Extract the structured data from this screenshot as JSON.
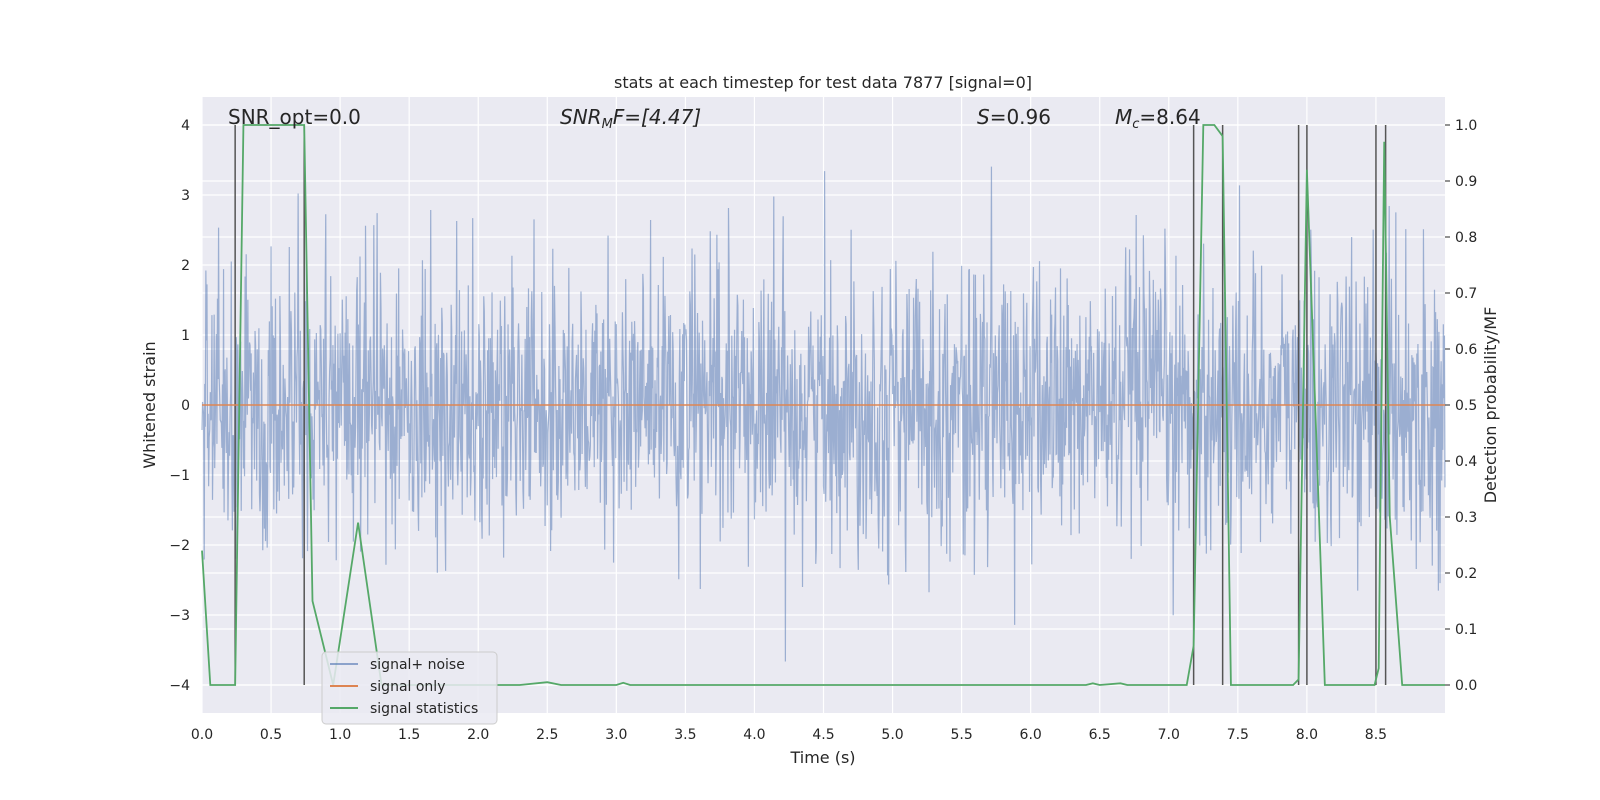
{
  "chart_data": {
    "type": "line",
    "title": "stats at each timestep for test data 7877 [signal=0]",
    "xlabel": "Time (s)",
    "ylabel_left": "Whitened strain",
    "ylabel_right": "Detection probability/MF",
    "xlim": [
      0.0,
      9.0
    ],
    "ylim_left": [
      -4.4,
      4.4
    ],
    "ylim_right": [
      -0.05,
      1.05
    ],
    "xticks": [
      0.0,
      0.5,
      1.0,
      1.5,
      2.0,
      2.5,
      3.0,
      3.5,
      4.0,
      4.5,
      5.0,
      5.5,
      6.0,
      6.5,
      7.0,
      7.5,
      8.0,
      8.5
    ],
    "xtick_labels": [
      "0.0",
      "0.5",
      "1.0",
      "1.5",
      "2.0",
      "2.5",
      "3.0",
      "3.5",
      "4.0",
      "4.5",
      "5.0",
      "5.5",
      "6.0",
      "6.5",
      "7.0",
      "7.5",
      "8.0",
      "8.5"
    ],
    "yticks_left": [
      -4,
      -3,
      -2,
      -1,
      0,
      1,
      2,
      3,
      4
    ],
    "ytick_labels_left": [
      "−4",
      "−3",
      "−2",
      "−1",
      "0",
      "1",
      "2",
      "3",
      "4"
    ],
    "yticks_right": [
      0.0,
      0.1,
      0.2,
      0.3,
      0.4,
      0.5,
      0.6,
      0.7,
      0.8,
      0.9,
      1.0
    ],
    "ytick_labels_right": [
      "0.0",
      "0.1",
      "0.2",
      "0.3",
      "0.4",
      "0.5",
      "0.6",
      "0.7",
      "0.8",
      "0.9",
      "1.0"
    ],
    "annotations": {
      "snr_opt": "SNR_opt=0.0",
      "snr_mf_sym": "SNR",
      "snr_mf_sub": "M",
      "snr_mf_rest": "F=[4.47]",
      "s_sym": "S",
      "s_rest": "=0.96",
      "mc_sym": "M",
      "mc_sub": "c",
      "mc_rest": "=8.64"
    },
    "legend": {
      "placement": "lower-left",
      "entries": [
        "signal+ noise",
        "signal only",
        "signal statistics"
      ]
    },
    "colors": {
      "background": "#eaeaf2",
      "grid": "#ffffff",
      "noise": "#4c72b0",
      "signal_only": "#dd8452",
      "statistics": "#55a868",
      "vlines": "#555555"
    },
    "noise_series": {
      "name": "signal+ noise",
      "description_stats": {
        "std": 1.0,
        "max_abs": 4.0
      },
      "sample_interval_s": 0.004,
      "x_start": 0.0,
      "x_end": 9.0
    },
    "signal_only_series": {
      "name": "signal only",
      "x": [
        0.0,
        9.0
      ],
      "y": [
        0.0,
        0.0
      ]
    },
    "statistics_series": {
      "name": "signal statistics",
      "x": [
        0.0,
        0.06,
        0.24,
        0.3,
        0.74,
        0.8,
        0.95,
        1.13,
        1.3,
        2.3,
        2.5,
        2.6,
        3.0,
        3.05,
        3.1,
        3.5,
        3.6,
        6.4,
        6.45,
        6.5,
        6.65,
        6.7,
        7.13,
        7.18,
        7.25,
        7.33,
        7.39,
        7.45,
        7.9,
        7.94,
        8.0,
        8.06,
        8.13,
        8.49,
        8.52,
        8.56,
        8.6,
        8.69,
        9.0
      ],
      "y": [
        0.24,
        0.0,
        0.0,
        1.0,
        1.0,
        0.15,
        0.0,
        0.29,
        0.0,
        0.0,
        0.005,
        0.0,
        0.0,
        0.004,
        0.0,
        0.0,
        0.0,
        0.0,
        0.003,
        0.0,
        0.003,
        0.0,
        0.0,
        0.07,
        1.0,
        1.0,
        0.98,
        0.0,
        0.0,
        0.01,
        0.92,
        0.5,
        0.0,
        0.0,
        0.03,
        0.97,
        0.3,
        0.0,
        0.0
      ]
    },
    "vlines": [
      0.24,
      0.74,
      7.18,
      7.39,
      7.94,
      8.0,
      8.5,
      8.57
    ]
  }
}
